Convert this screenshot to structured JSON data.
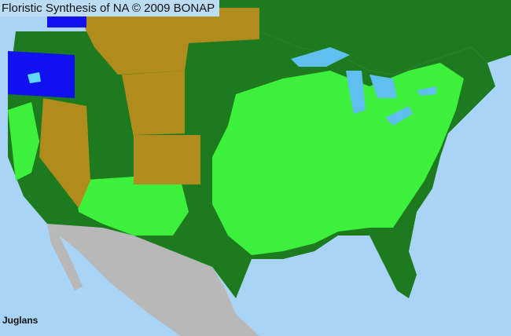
{
  "map": {
    "title": "Floristic Synthesis of NA © 2009 BONAP",
    "taxon": "Juglans",
    "colors": {
      "ocean": "#a9d4f5",
      "lakes": "#5fc0f0",
      "canada": "#1e7a1e",
      "present_native": "#1e7a1e",
      "present_county": "#3cf03c",
      "absent_state": "#b08c1c",
      "adventive_state": "#1010f0",
      "adventive_county": "#60d8f8",
      "mexico": "#b8b8b8"
    }
  }
}
